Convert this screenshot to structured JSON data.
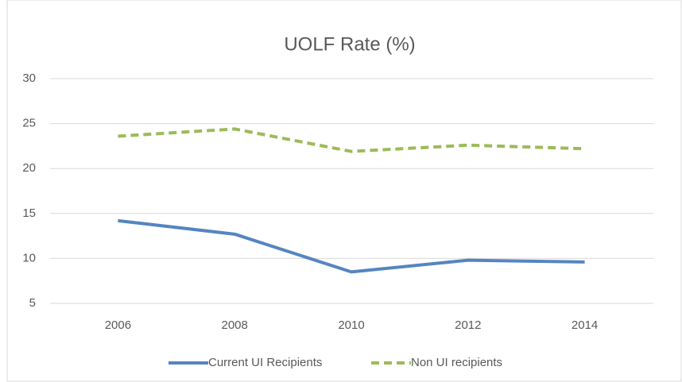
{
  "chart_data": {
    "type": "line",
    "title": "UOLF Rate (%)",
    "categories": [
      "2006",
      "2008",
      "2010",
      "2012",
      "2014"
    ],
    "series": [
      {
        "name": "Current UI Recipients",
        "color": "#5585c0",
        "dash": "solid",
        "values": [
          14.2,
          12.7,
          8.5,
          9.8,
          9.6
        ]
      },
      {
        "name": "Non UI recipients",
        "color": "#9bbb59",
        "dash": "dashed",
        "values": [
          23.6,
          24.4,
          21.9,
          22.6,
          22.2
        ]
      }
    ],
    "ylim": [
      5,
      30
    ],
    "yticks": [
      5,
      10,
      15,
      20,
      25,
      30
    ],
    "grid": true,
    "legend": "bottom"
  }
}
